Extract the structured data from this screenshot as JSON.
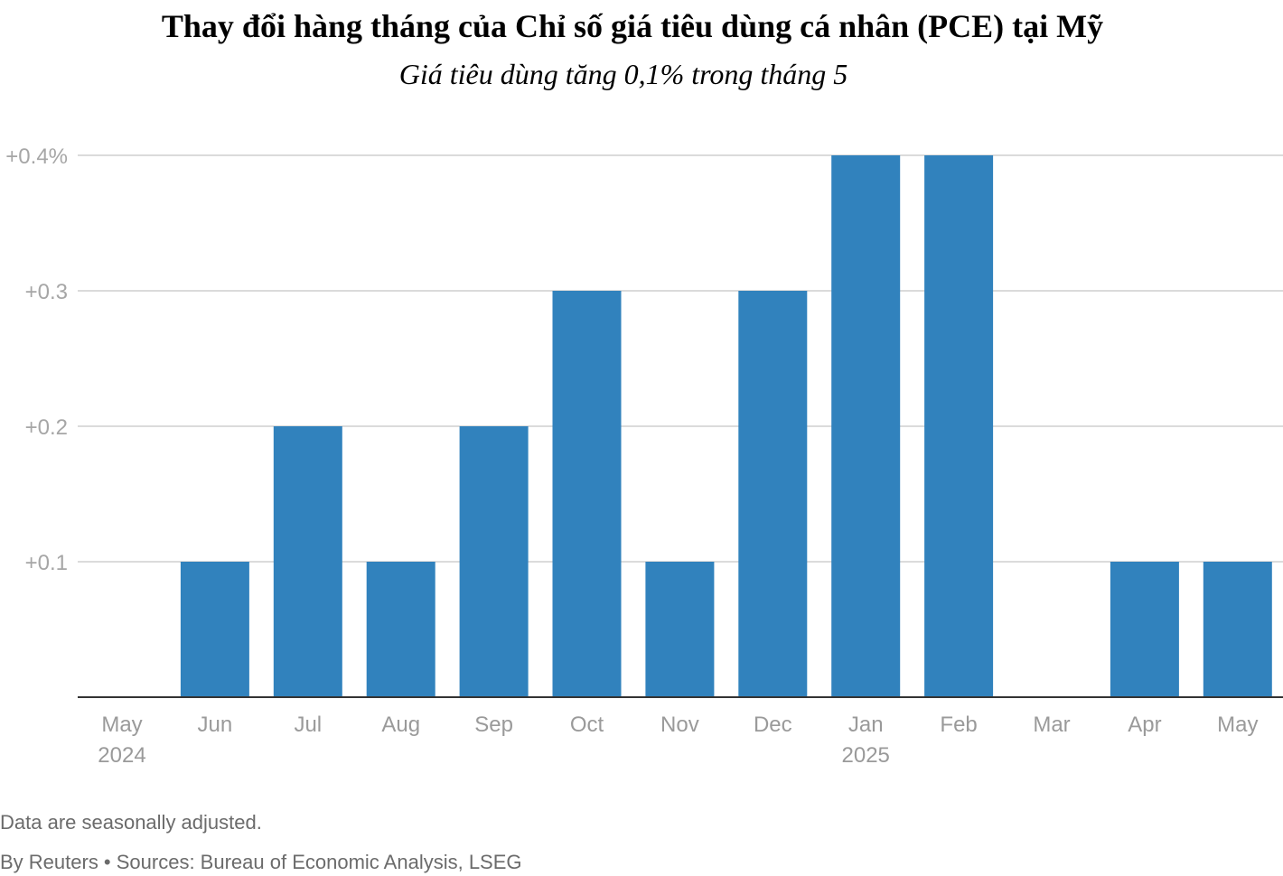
{
  "chart_data": {
    "type": "bar",
    "title": "Thay đổi hàng tháng của Chỉ số giá tiêu dùng cá nhân (PCE) tại Mỹ",
    "subtitle": "Giá tiêu dùng tăng 0,1% trong tháng 5",
    "categories": [
      "May",
      "Jun",
      "Jul",
      "Aug",
      "Sep",
      "Oct",
      "Nov",
      "Dec",
      "Jan",
      "Feb",
      "Mar",
      "Apr",
      "May"
    ],
    "category_sublabels": [
      "2024",
      "",
      "",
      "",
      "",
      "",
      "",
      "",
      "2025",
      "",
      "",
      "",
      ""
    ],
    "values": [
      0.0,
      0.1,
      0.2,
      0.1,
      0.2,
      0.3,
      0.1,
      0.3,
      0.4,
      0.4,
      0.0,
      0.1,
      0.1
    ],
    "ylim": [
      0,
      0.4
    ],
    "yticks": [
      0.1,
      0.2,
      0.3,
      0.4
    ],
    "ytick_labels": [
      "+0.1",
      "+0.2",
      "+0.3",
      "+0.4%"
    ],
    "xlabel": "",
    "ylabel": "",
    "grid": true,
    "bar_color": "#3182bd"
  },
  "footer": {
    "note": "Data are seasonally adjusted.",
    "source": "By Reuters • Sources: Bureau of Economic Analysis, LSEG"
  }
}
